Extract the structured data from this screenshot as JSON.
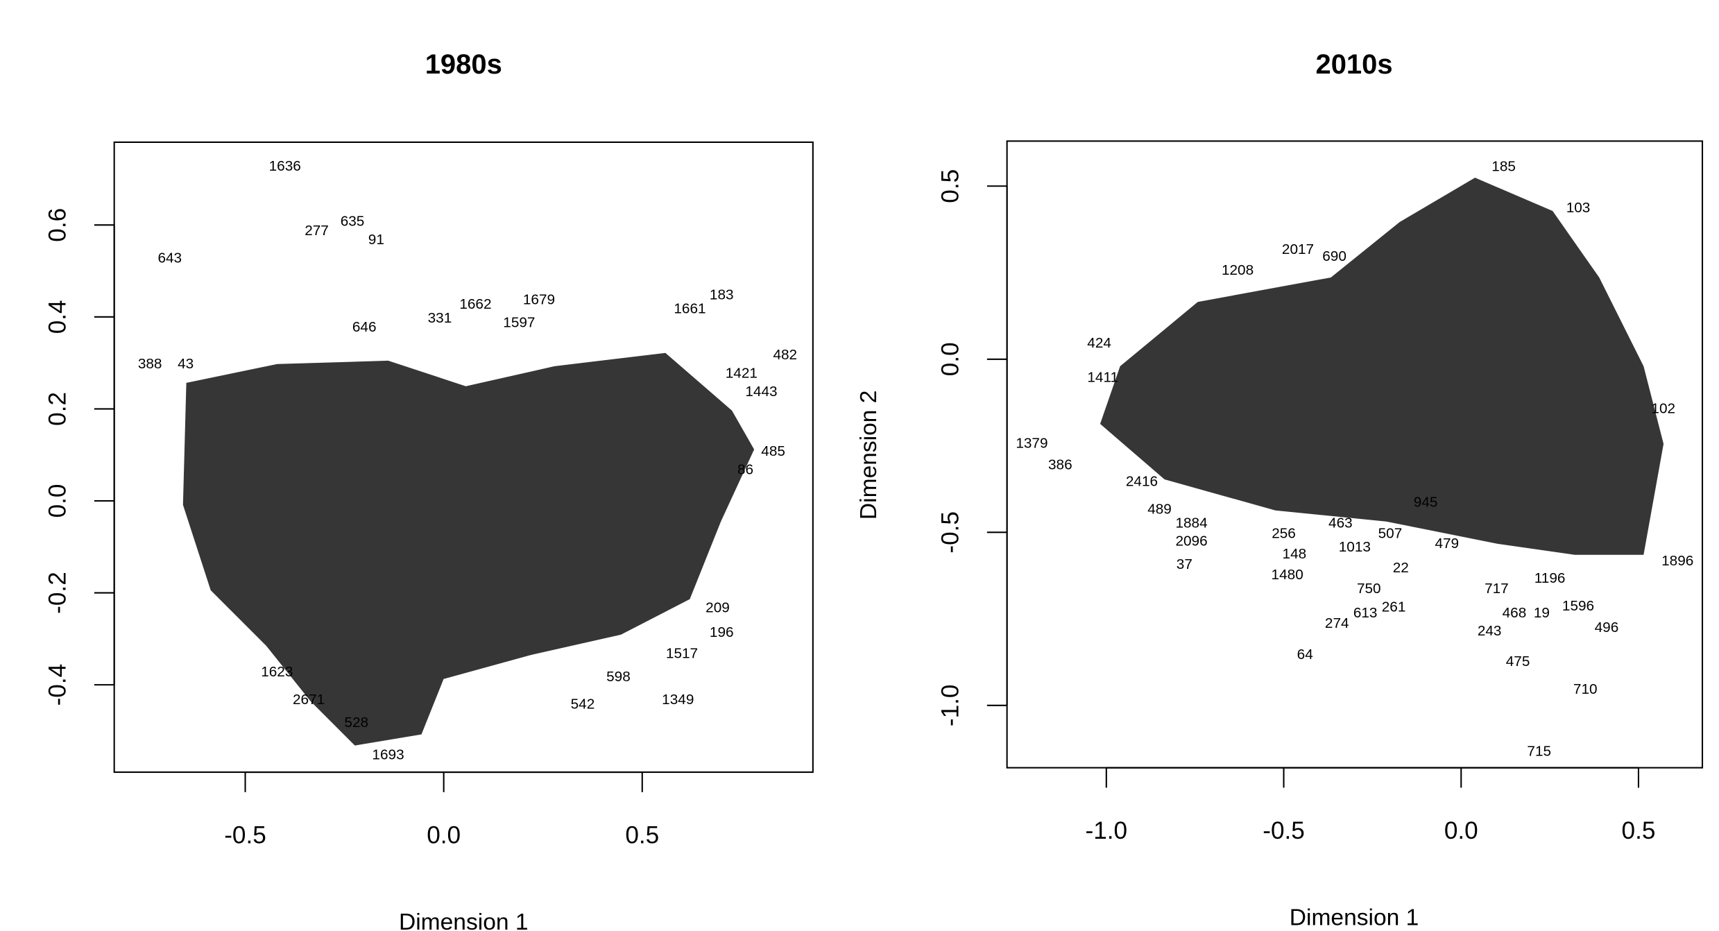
{
  "chart_data": [
    {
      "type": "scatter",
      "title": "1980s",
      "xlabel": "Dimension 1",
      "ylabel": "",
      "xlim": [
        -0.83,
        0.93
      ],
      "ylim": [
        -0.59,
        0.78
      ],
      "xticks": [
        -0.5,
        0.0,
        0.5
      ],
      "xtick_labels": [
        "-0.5",
        "0.0",
        "0.5"
      ],
      "yticks": [
        -0.4,
        -0.2,
        0.0,
        0.2,
        0.4,
        0.6
      ],
      "ytick_labels": [
        "-0.4",
        "-0.2",
        "0.0",
        "0.2",
        "0.4",
        "0.6"
      ],
      "grid": false,
      "marker": "text-label",
      "points": [
        {
          "label": "1636",
          "x": -0.4,
          "y": 0.73
        },
        {
          "label": "277",
          "x": -0.32,
          "y": 0.59
        },
        {
          "label": "635",
          "x": -0.23,
          "y": 0.61
        },
        {
          "label": "91",
          "x": -0.17,
          "y": 0.57
        },
        {
          "label": "643",
          "x": -0.69,
          "y": 0.53
        },
        {
          "label": "1662",
          "x": 0.08,
          "y": 0.43
        },
        {
          "label": "1679",
          "x": 0.24,
          "y": 0.44
        },
        {
          "label": "331",
          "x": -0.01,
          "y": 0.4
        },
        {
          "label": "1597",
          "x": 0.19,
          "y": 0.39
        },
        {
          "label": "646",
          "x": -0.2,
          "y": 0.38
        },
        {
          "label": "183",
          "x": 0.7,
          "y": 0.45
        },
        {
          "label": "1661",
          "x": 0.62,
          "y": 0.42
        },
        {
          "label": "482",
          "x": 0.86,
          "y": 0.32
        },
        {
          "label": "388",
          "x": -0.74,
          "y": 0.3
        },
        {
          "label": "43",
          "x": -0.65,
          "y": 0.3
        },
        {
          "label": "1421",
          "x": 0.75,
          "y": 0.28
        },
        {
          "label": "1443",
          "x": 0.8,
          "y": 0.24
        },
        {
          "label": "485",
          "x": 0.83,
          "y": 0.11
        },
        {
          "label": "86",
          "x": 0.76,
          "y": 0.07
        },
        {
          "label": "209",
          "x": 0.69,
          "y": -0.23
        },
        {
          "label": "196",
          "x": 0.7,
          "y": -0.25
        },
        {
          "label": "1517",
          "x": 0.6,
          "y": -0.33
        },
        {
          "label": "598",
          "x": 0.44,
          "y": -0.38
        },
        {
          "label": "1349",
          "x": 0.59,
          "y": -0.43
        },
        {
          "label": "542",
          "x": 0.35,
          "y": -0.44
        },
        {
          "label": "1623",
          "x": -0.42,
          "y": -0.37
        },
        {
          "label": "2671",
          "x": -0.34,
          "y": -0.43
        },
        {
          "label": "528",
          "x": -0.22,
          "y": -0.48
        },
        {
          "label": "1693",
          "x": -0.14,
          "y": -0.55
        }
      ]
    },
    {
      "type": "scatter",
      "title": "2010s",
      "xlabel": "Dimension 1",
      "ylabel": "Dimension 2",
      "xlim": [
        -1.28,
        0.68
      ],
      "ylim": [
        -1.18,
        0.63
      ],
      "xticks": [
        -1.0,
        -0.5,
        0.0,
        0.5
      ],
      "xtick_labels": [
        "-1.0",
        "-0.5",
        "0.0",
        "0.5"
      ],
      "yticks": [
        -1.0,
        -0.5,
        0.0,
        0.5
      ],
      "ytick_labels": [
        "-1.0",
        "-0.5",
        "0.0",
        "0.5"
      ],
      "grid": false,
      "marker": "text-label",
      "points": [
        {
          "label": "185",
          "x": 0.12,
          "y": 0.56
        },
        {
          "label": "103",
          "x": 0.33,
          "y": 0.44
        },
        {
          "label": "2017",
          "x": -0.46,
          "y": 0.32
        },
        {
          "label": "690",
          "x": -0.39,
          "y": 0.3
        },
        {
          "label": "1208",
          "x": -0.63,
          "y": 0.26
        },
        {
          "label": "424",
          "x": -1.02,
          "y": 0.05
        },
        {
          "label": "1411",
          "x": -1.01,
          "y": -0.05
        },
        {
          "label": "102",
          "x": 0.57,
          "y": -0.14
        },
        {
          "label": "1379",
          "x": -1.21,
          "y": -0.24
        },
        {
          "label": "386",
          "x": -1.13,
          "y": -0.28
        },
        {
          "label": "2416",
          "x": -0.9,
          "y": -0.35
        },
        {
          "label": "945",
          "x": -0.1,
          "y": -0.41
        },
        {
          "label": "489",
          "x": -0.85,
          "y": -0.43
        },
        {
          "label": "1884",
          "x": -0.76,
          "y": -0.47
        },
        {
          "label": "463",
          "x": -0.34,
          "y": -0.47
        },
        {
          "label": "2096",
          "x": -0.76,
          "y": -0.5
        },
        {
          "label": "256",
          "x": -0.5,
          "y": -0.5
        },
        {
          "label": "507",
          "x": -0.2,
          "y": -0.5
        },
        {
          "label": "479",
          "x": -0.04,
          "y": -0.53
        },
        {
          "label": "1013",
          "x": -0.3,
          "y": -0.54
        },
        {
          "label": "148",
          "x": -0.47,
          "y": -0.56
        },
        {
          "label": "1896",
          "x": 0.61,
          "y": -0.58
        },
        {
          "label": "37",
          "x": -0.78,
          "y": -0.59
        },
        {
          "label": "22",
          "x": -0.17,
          "y": -0.6
        },
        {
          "label": "1480",
          "x": -0.49,
          "y": -0.62
        },
        {
          "label": "1196",
          "x": 0.25,
          "y": -0.63
        },
        {
          "label": "750",
          "x": -0.26,
          "y": -0.66
        },
        {
          "label": "717",
          "x": 0.1,
          "y": -0.66
        },
        {
          "label": "261",
          "x": -0.19,
          "y": -0.69
        },
        {
          "label": "1596",
          "x": 0.33,
          "y": -0.71
        },
        {
          "label": "613",
          "x": -0.27,
          "y": -0.73
        },
        {
          "label": "468",
          "x": 0.15,
          "y": -0.73
        },
        {
          "label": "19",
          "x": 0.26,
          "y": -0.73
        },
        {
          "label": "496",
          "x": 0.41,
          "y": -0.75
        },
        {
          "label": "274",
          "x": -0.35,
          "y": -0.76
        },
        {
          "label": "243",
          "x": 0.08,
          "y": -0.76
        },
        {
          "label": "64",
          "x": -0.44,
          "y": -0.85
        },
        {
          "label": "475",
          "x": 0.16,
          "y": -0.87
        },
        {
          "label": "710",
          "x": 0.35,
          "y": -0.95
        },
        {
          "label": "715",
          "x": 0.22,
          "y": -1.13
        }
      ]
    }
  ]
}
